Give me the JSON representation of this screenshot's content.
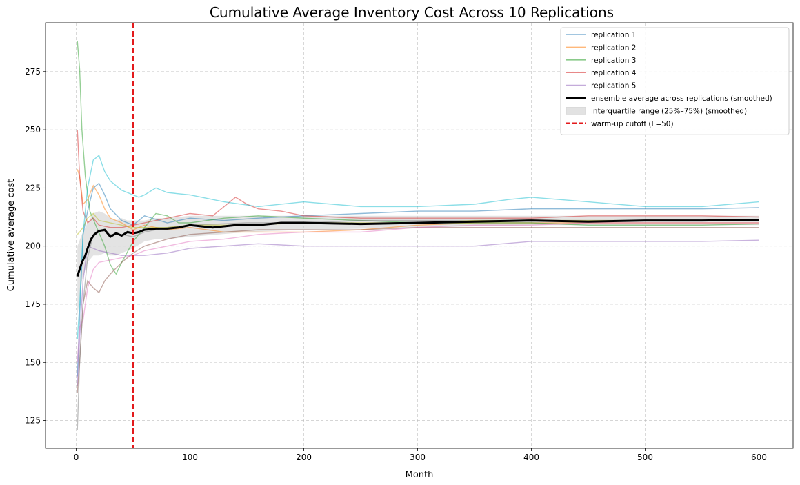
{
  "chart_data": {
    "type": "line",
    "title": "Cumulative Average Inventory Cost Across 10 Replications",
    "xlabel": "Month",
    "ylabel": "Cumulative average cost",
    "xlim": [
      -27,
      630
    ],
    "ylim": [
      113,
      296
    ],
    "xticks": [
      0,
      100,
      200,
      300,
      400,
      500,
      600
    ],
    "yticks": [
      125,
      150,
      175,
      200,
      225,
      250,
      275
    ],
    "grid": true,
    "legend_position": "top-right",
    "series": [
      {
        "name": "replication 1",
        "color": "#1f77b4",
        "points": [
          [
            1,
            144
          ],
          [
            3,
            170
          ],
          [
            6,
            205
          ],
          [
            10,
            215
          ],
          [
            15,
            225
          ],
          [
            20,
            227
          ],
          [
            25,
            222
          ],
          [
            30,
            216
          ],
          [
            40,
            211
          ],
          [
            50,
            209
          ],
          [
            60,
            213
          ],
          [
            80,
            210
          ],
          [
            100,
            212
          ],
          [
            130,
            211
          ],
          [
            160,
            212
          ],
          [
            200,
            213
          ],
          [
            250,
            214
          ],
          [
            300,
            215
          ],
          [
            350,
            215
          ],
          [
            400,
            216
          ],
          [
            450,
            216
          ],
          [
            500,
            216
          ],
          [
            550,
            216
          ],
          [
            600,
            216.5
          ]
        ]
      },
      {
        "name": "replication 2",
        "color": "#ff7f0e",
        "points": [
          [
            1,
            233
          ],
          [
            3,
            230
          ],
          [
            6,
            218
          ],
          [
            10,
            220
          ],
          [
            15,
            226
          ],
          [
            20,
            222
          ],
          [
            25,
            216
          ],
          [
            30,
            212
          ],
          [
            40,
            210
          ],
          [
            50,
            207
          ],
          [
            60,
            209
          ],
          [
            80,
            207
          ],
          [
            100,
            208
          ],
          [
            130,
            206
          ],
          [
            160,
            206
          ],
          [
            200,
            206
          ],
          [
            250,
            207
          ],
          [
            300,
            209
          ],
          [
            350,
            210
          ],
          [
            400,
            210
          ],
          [
            450,
            210
          ],
          [
            500,
            210
          ],
          [
            550,
            210
          ],
          [
            600,
            210
          ]
        ]
      },
      {
        "name": "replication 3",
        "color": "#2ca02c",
        "points": [
          [
            1,
            288
          ],
          [
            3,
            276
          ],
          [
            5,
            250
          ],
          [
            8,
            230
          ],
          [
            12,
            215
          ],
          [
            18,
            208
          ],
          [
            25,
            200
          ],
          [
            30,
            192
          ],
          [
            35,
            188
          ],
          [
            40,
            193
          ],
          [
            50,
            202
          ],
          [
            60,
            208
          ],
          [
            70,
            214
          ],
          [
            80,
            213
          ],
          [
            90,
            210
          ],
          [
            100,
            210
          ],
          [
            130,
            212
          ],
          [
            160,
            213
          ],
          [
            200,
            212
          ],
          [
            250,
            211
          ],
          [
            300,
            210
          ],
          [
            350,
            210
          ],
          [
            400,
            210
          ],
          [
            450,
            209
          ],
          [
            500,
            209
          ],
          [
            550,
            209
          ],
          [
            600,
            209.5
          ]
        ]
      },
      {
        "name": "replication 4",
        "color": "#d62728",
        "points": [
          [
            1,
            250
          ],
          [
            3,
            230
          ],
          [
            6,
            215
          ],
          [
            10,
            210
          ],
          [
            15,
            212
          ],
          [
            20,
            209
          ],
          [
            30,
            208
          ],
          [
            40,
            208
          ],
          [
            50,
            209
          ],
          [
            60,
            210
          ],
          [
            80,
            212
          ],
          [
            100,
            214
          ],
          [
            120,
            213
          ],
          [
            140,
            221
          ],
          [
            150,
            218
          ],
          [
            160,
            216
          ],
          [
            180,
            215
          ],
          [
            200,
            213
          ],
          [
            250,
            212
          ],
          [
            300,
            212
          ],
          [
            350,
            212
          ],
          [
            400,
            212
          ],
          [
            450,
            213
          ],
          [
            500,
            213
          ],
          [
            550,
            213
          ],
          [
            600,
            212.5
          ]
        ]
      },
      {
        "name": "replication 5",
        "color": "#9467bd",
        "points": [
          [
            1,
            140
          ],
          [
            3,
            160
          ],
          [
            6,
            185
          ],
          [
            10,
            200
          ],
          [
            15,
            199
          ],
          [
            20,
            198
          ],
          [
            30,
            197
          ],
          [
            40,
            196
          ],
          [
            50,
            196
          ],
          [
            60,
            196
          ],
          [
            80,
            197
          ],
          [
            100,
            199
          ],
          [
            130,
            200
          ],
          [
            160,
            201
          ],
          [
            200,
            200
          ],
          [
            250,
            200
          ],
          [
            300,
            200
          ],
          [
            350,
            200
          ],
          [
            400,
            202
          ],
          [
            450,
            202
          ],
          [
            500,
            202
          ],
          [
            550,
            202
          ],
          [
            600,
            202.5
          ]
        ]
      },
      {
        "name": "",
        "color": "#8c564b",
        "points": [
          [
            1,
            137
          ],
          [
            3,
            150
          ],
          [
            6,
            175
          ],
          [
            10,
            185
          ],
          [
            15,
            182
          ],
          [
            20,
            180
          ],
          [
            25,
            185
          ],
          [
            30,
            188
          ],
          [
            40,
            193
          ],
          [
            50,
            197
          ],
          [
            60,
            200
          ],
          [
            80,
            203
          ],
          [
            100,
            205
          ],
          [
            130,
            206
          ],
          [
            160,
            207
          ],
          [
            200,
            207
          ],
          [
            250,
            207
          ],
          [
            300,
            208
          ],
          [
            350,
            208
          ],
          [
            400,
            208
          ],
          [
            450,
            208
          ],
          [
            500,
            208
          ],
          [
            550,
            208
          ],
          [
            600,
            208
          ]
        ]
      },
      {
        "name": "",
        "color": "#e377c2",
        "points": [
          [
            1,
            150
          ],
          [
            3,
            165
          ],
          [
            6,
            168
          ],
          [
            10,
            182
          ],
          [
            15,
            190
          ],
          [
            20,
            193
          ],
          [
            30,
            194
          ],
          [
            40,
            195
          ],
          [
            50,
            196
          ],
          [
            60,
            198
          ],
          [
            80,
            200
          ],
          [
            100,
            202
          ],
          [
            130,
            203
          ],
          [
            160,
            205
          ],
          [
            200,
            206
          ],
          [
            250,
            206
          ],
          [
            300,
            208
          ],
          [
            350,
            209
          ],
          [
            400,
            209
          ],
          [
            450,
            210
          ],
          [
            500,
            210
          ],
          [
            550,
            210
          ],
          [
            600,
            210
          ]
        ]
      },
      {
        "name": "",
        "color": "#7f7f7f",
        "points": [
          [
            1,
            121
          ],
          [
            3,
            150
          ],
          [
            6,
            175
          ],
          [
            10,
            195
          ],
          [
            15,
            205
          ],
          [
            20,
            207
          ],
          [
            25,
            206
          ],
          [
            30,
            205
          ],
          [
            40,
            205
          ],
          [
            50,
            204
          ],
          [
            60,
            206
          ],
          [
            80,
            208
          ],
          [
            100,
            209
          ],
          [
            150,
            210
          ],
          [
            200,
            210
          ],
          [
            250,
            211
          ],
          [
            300,
            211
          ],
          [
            350,
            211
          ],
          [
            400,
            211
          ],
          [
            450,
            211
          ],
          [
            500,
            211
          ],
          [
            550,
            211
          ],
          [
            600,
            211
          ]
        ]
      },
      {
        "name": "",
        "color": "#bcbd22",
        "points": [
          [
            1,
            205
          ],
          [
            3,
            206
          ],
          [
            6,
            208
          ],
          [
            10,
            212
          ],
          [
            15,
            214
          ],
          [
            20,
            211
          ],
          [
            30,
            210
          ],
          [
            40,
            209
          ],
          [
            50,
            208
          ],
          [
            60,
            208
          ],
          [
            80,
            208
          ],
          [
            100,
            209
          ],
          [
            150,
            209
          ],
          [
            200,
            210
          ],
          [
            250,
            210
          ],
          [
            300,
            210
          ],
          [
            350,
            211
          ],
          [
            400,
            211
          ],
          [
            450,
            211
          ],
          [
            500,
            211
          ],
          [
            550,
            211
          ],
          [
            600,
            211
          ]
        ]
      },
      {
        "name": "",
        "color": "#17becf",
        "points": [
          [
            1,
            160
          ],
          [
            3,
            175
          ],
          [
            6,
            205
          ],
          [
            10,
            225
          ],
          [
            15,
            237
          ],
          [
            20,
            239
          ],
          [
            25,
            232
          ],
          [
            30,
            228
          ],
          [
            40,
            224
          ],
          [
            50,
            222
          ],
          [
            55,
            221
          ],
          [
            60,
            222
          ],
          [
            70,
            225
          ],
          [
            80,
            223
          ],
          [
            100,
            222
          ],
          [
            130,
            219
          ],
          [
            160,
            217
          ],
          [
            200,
            219
          ],
          [
            250,
            217
          ],
          [
            300,
            217
          ],
          [
            350,
            218
          ],
          [
            380,
            220
          ],
          [
            400,
            221
          ],
          [
            450,
            219
          ],
          [
            500,
            217
          ],
          [
            550,
            217
          ],
          [
            600,
            219
          ]
        ]
      }
    ],
    "ensemble": {
      "name": "ensemble average across replications (smoothed)",
      "color": "#000000",
      "points": [
        [
          1,
          187
        ],
        [
          3,
          190
        ],
        [
          5,
          193
        ],
        [
          8,
          196
        ],
        [
          10,
          199
        ],
        [
          13,
          203
        ],
        [
          16,
          205
        ],
        [
          20,
          206.5
        ],
        [
          25,
          207
        ],
        [
          30,
          204
        ],
        [
          35,
          205.5
        ],
        [
          40,
          204.5
        ],
        [
          45,
          206
        ],
        [
          50,
          205.5
        ],
        [
          55,
          206
        ],
        [
          60,
          207
        ],
        [
          70,
          207.5
        ],
        [
          80,
          207.5
        ],
        [
          90,
          208
        ],
        [
          100,
          209
        ],
        [
          120,
          208
        ],
        [
          140,
          209
        ],
        [
          160,
          209
        ],
        [
          180,
          210
        ],
        [
          200,
          210
        ],
        [
          250,
          209.5
        ],
        [
          300,
          210
        ],
        [
          350,
          210.5
        ],
        [
          400,
          211
        ],
        [
          450,
          210.5
        ],
        [
          500,
          211
        ],
        [
          550,
          211
        ],
        [
          600,
          211.3
        ]
      ]
    },
    "iqr": {
      "name": "interquartile range (25%–75%) (smoothed)",
      "color": "#cccccc",
      "x": [
        1,
        5,
        10,
        15,
        20,
        25,
        30,
        35,
        40,
        45,
        50,
        60,
        70,
        80,
        100,
        150,
        200,
        300,
        400,
        500,
        600
      ],
      "lower": [
        170,
        185,
        193,
        196,
        196,
        197,
        196,
        196,
        197,
        198,
        199,
        202,
        203,
        203,
        204,
        206,
        207,
        208,
        209,
        209,
        209
      ],
      "upper": [
        200,
        205,
        210,
        214,
        215,
        214,
        212,
        211,
        212,
        211,
        211,
        211,
        212,
        212,
        213,
        213,
        213,
        213,
        213,
        213,
        213
      ]
    },
    "cutoff": {
      "name": "warm-up cutoff (L=50)",
      "color": "#e31a1c",
      "x": 50
    }
  }
}
